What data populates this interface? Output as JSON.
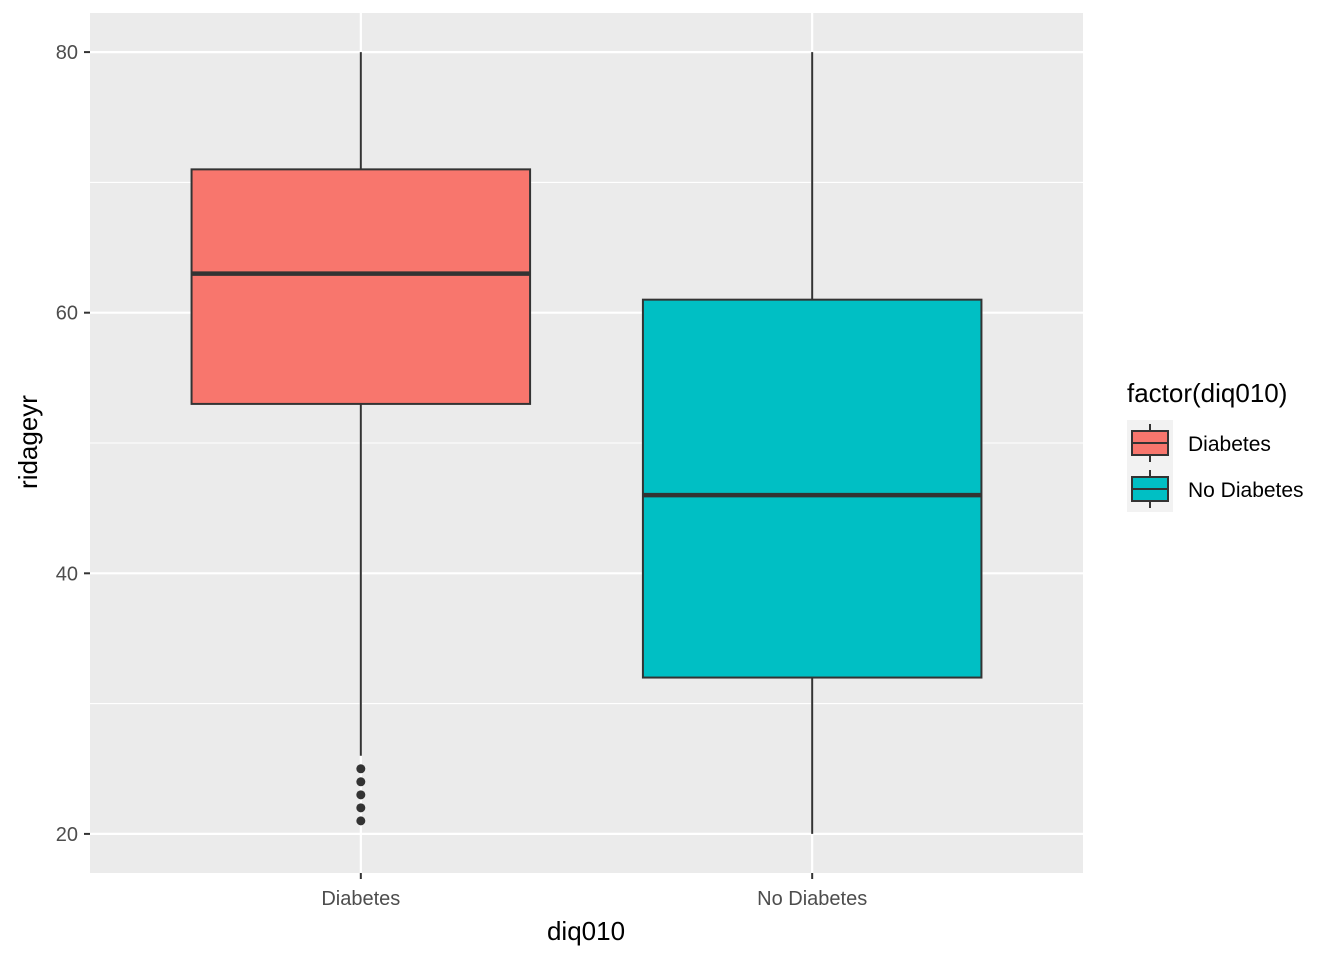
{
  "chart_data": {
    "type": "boxplot",
    "xlabel": "diq010",
    "ylabel": "ridageyr",
    "ylim": [
      17,
      83
    ],
    "y_ticks": [
      20,
      40,
      60,
      80
    ],
    "y_tick_labels": [
      "20",
      "40",
      "60",
      "80"
    ],
    "categories": [
      "Diabetes",
      "No Diabetes"
    ],
    "boxes": [
      {
        "category": "Diabetes",
        "whisker_low": 26,
        "q1": 53,
        "median": 63,
        "q3": 71,
        "whisker_high": 80,
        "outliers": [
          21,
          22,
          23,
          24,
          25
        ],
        "color": "#F8766D"
      },
      {
        "category": "No Diabetes",
        "whisker_low": 20,
        "q1": 32,
        "median": 46,
        "q3": 61,
        "whisker_high": 80,
        "outliers": [],
        "color": "#00BFC4"
      }
    ],
    "grid": true,
    "panel_background": "#EBEBEB",
    "legend": {
      "title": "factor(diq010)",
      "position": "right",
      "entries": [
        {
          "label": "Diabetes",
          "color": "#F8766D"
        },
        {
          "label": "No Diabetes",
          "color": "#00BFC4"
        }
      ]
    }
  }
}
